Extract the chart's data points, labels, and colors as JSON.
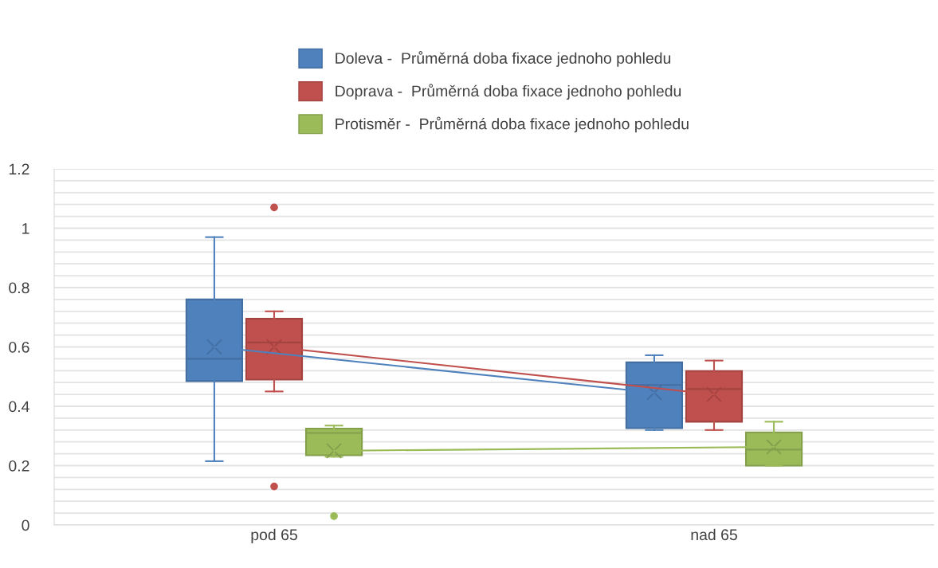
{
  "chart_data": {
    "type": "box",
    "categories": [
      "pod 65",
      "nad 65"
    ],
    "series": [
      {
        "name": "Doleva -  Průměrná doba fixace jednoho pohledu",
        "color": "#4f81bd",
        "boxes": [
          {
            "low": 0.215,
            "q1": 0.485,
            "median": 0.56,
            "q3": 0.76,
            "high": 0.97,
            "mean": 0.6
          },
          {
            "low": 0.32,
            "q1": 0.326,
            "median": 0.472,
            "q3": 0.548,
            "high": 0.572,
            "mean": 0.446
          }
        ]
      },
      {
        "name": "Doprava -  Průměrná doba fixace jednoho pohledu",
        "color": "#c0504d",
        "boxes": [
          {
            "low": 0.45,
            "q1": 0.49,
            "median": 0.615,
            "q3": 0.695,
            "high": 0.72,
            "mean": 0.6,
            "outliers": [
              1.07,
              0.13
            ]
          },
          {
            "low": 0.32,
            "q1": 0.348,
            "median": 0.458,
            "q3": 0.519,
            "high": 0.554,
            "mean": 0.44
          }
        ]
      },
      {
        "name": "Protisměr -  Průměrná doba fixace jednoho pohledu",
        "color": "#9bbb59",
        "boxes": [
          {
            "low": 0.23,
            "q1": 0.235,
            "median": 0.31,
            "q3": 0.325,
            "high": 0.335,
            "mean": 0.25,
            "outliers": [
              0.03
            ]
          },
          {
            "low": 0.2,
            "q1": 0.2,
            "median": 0.254,
            "q3": 0.312,
            "high": 0.348,
            "mean": 0.263
          }
        ]
      },
      {
        "type": "line",
        "color": "#4f81bd",
        "values": [
          0.6,
          0.446
        ]
      },
      {
        "type": "line",
        "color": "#c0504d",
        "values": [
          0.6,
          0.44
        ]
      },
      {
        "type": "line",
        "color": "#9bbb59",
        "values": [
          0.25,
          0.263
        ]
      }
    ],
    "ylim": [
      0,
      1.2
    ],
    "yticks": [
      0,
      {
        "value": 0.04,
        "label": null
      },
      {
        "value": 0.08,
        "label": null
      },
      {
        "value": 0.12,
        "label": null
      },
      {
        "value": 0.16,
        "label": null
      },
      0.2,
      {
        "value": 0.24,
        "label": null
      },
      {
        "value": 0.28,
        "label": null
      },
      {
        "value": 0.32,
        "label": null
      },
      {
        "value": 0.36,
        "label": null
      },
      0.4,
      {
        "value": 0.44,
        "label": null
      },
      {
        "value": 0.48,
        "label": null
      },
      {
        "value": 0.52,
        "label": null
      },
      {
        "value": 0.56,
        "label": null
      },
      0.6,
      {
        "value": 0.64,
        "label": null
      },
      {
        "value": 0.68,
        "label": null
      },
      {
        "value": 0.72,
        "label": null
      },
      {
        "value": 0.76,
        "label": null
      },
      0.8,
      {
        "value": 0.84,
        "label": null
      },
      {
        "value": 0.88,
        "label": null
      },
      {
        "value": 0.92,
        "label": null
      },
      {
        "value": 0.96,
        "label": null
      },
      1,
      {
        "value": 1.04,
        "label": null
      },
      {
        "value": 1.08,
        "label": null
      },
      {
        "value": 1.12,
        "label": null
      },
      {
        "value": 1.16,
        "label": null
      },
      1.2
    ],
    "grid": "y",
    "legend": "top"
  }
}
